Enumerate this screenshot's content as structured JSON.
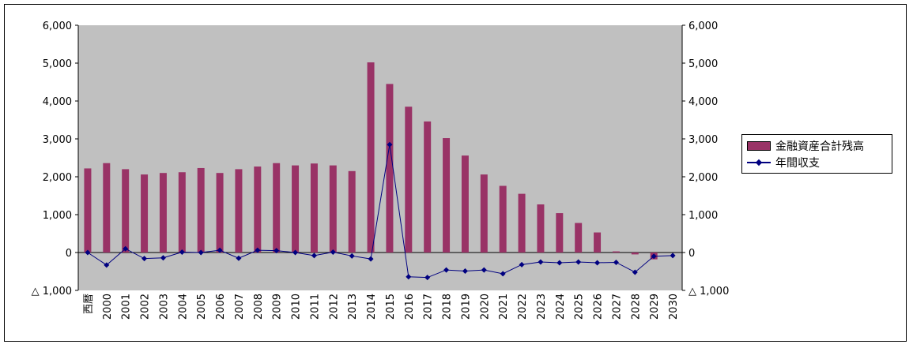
{
  "chart_data": {
    "type": "bar",
    "categories": [
      "西暦",
      "2000",
      "2001",
      "2002",
      "2003",
      "2004",
      "2005",
      "2006",
      "2007",
      "2008",
      "2009",
      "2010",
      "2011",
      "2012",
      "2013",
      "2014",
      "2015",
      "2016",
      "2017",
      "2018",
      "2019",
      "2020",
      "2021",
      "2022",
      "2023",
      "2024",
      "2025",
      "2026",
      "2027",
      "2028",
      "2029",
      "2030"
    ],
    "series": [
      {
        "name": "金融資産合計残高",
        "type": "bar",
        "color": "#993366",
        "values": [
          2220,
          2360,
          2200,
          2060,
          2100,
          2120,
          2230,
          2100,
          2200,
          2270,
          2360,
          2300,
          2350,
          2300,
          2150,
          5020,
          4450,
          3850,
          3460,
          3020,
          2560,
          2060,
          1760,
          1550,
          1270,
          1040,
          780,
          530,
          30,
          -50,
          -180,
          null
        ]
      },
      {
        "name": "年間収支",
        "type": "line",
        "color": "#000080",
        "values": [
          0,
          -330,
          100,
          -160,
          -140,
          10,
          0,
          60,
          -150,
          60,
          50,
          0,
          -80,
          10,
          -90,
          -170,
          2850,
          -640,
          -660,
          -460,
          -490,
          -460,
          -560,
          -320,
          -250,
          -270,
          -250,
          -270,
          -260,
          -520,
          -100,
          -80
        ]
      }
    ],
    "ylim": [
      -1000,
      6000
    ],
    "y_ticks": [
      -1000,
      0,
      1000,
      2000,
      3000,
      4000,
      5000,
      6000
    ],
    "y_tick_labels": [
      "△ 1,000",
      "0",
      "1,000",
      "2,000",
      "3,000",
      "4,000",
      "5,000",
      "6,000"
    ],
    "grid": false,
    "legend_position": "right",
    "plot_background": "#c0c0c0"
  }
}
